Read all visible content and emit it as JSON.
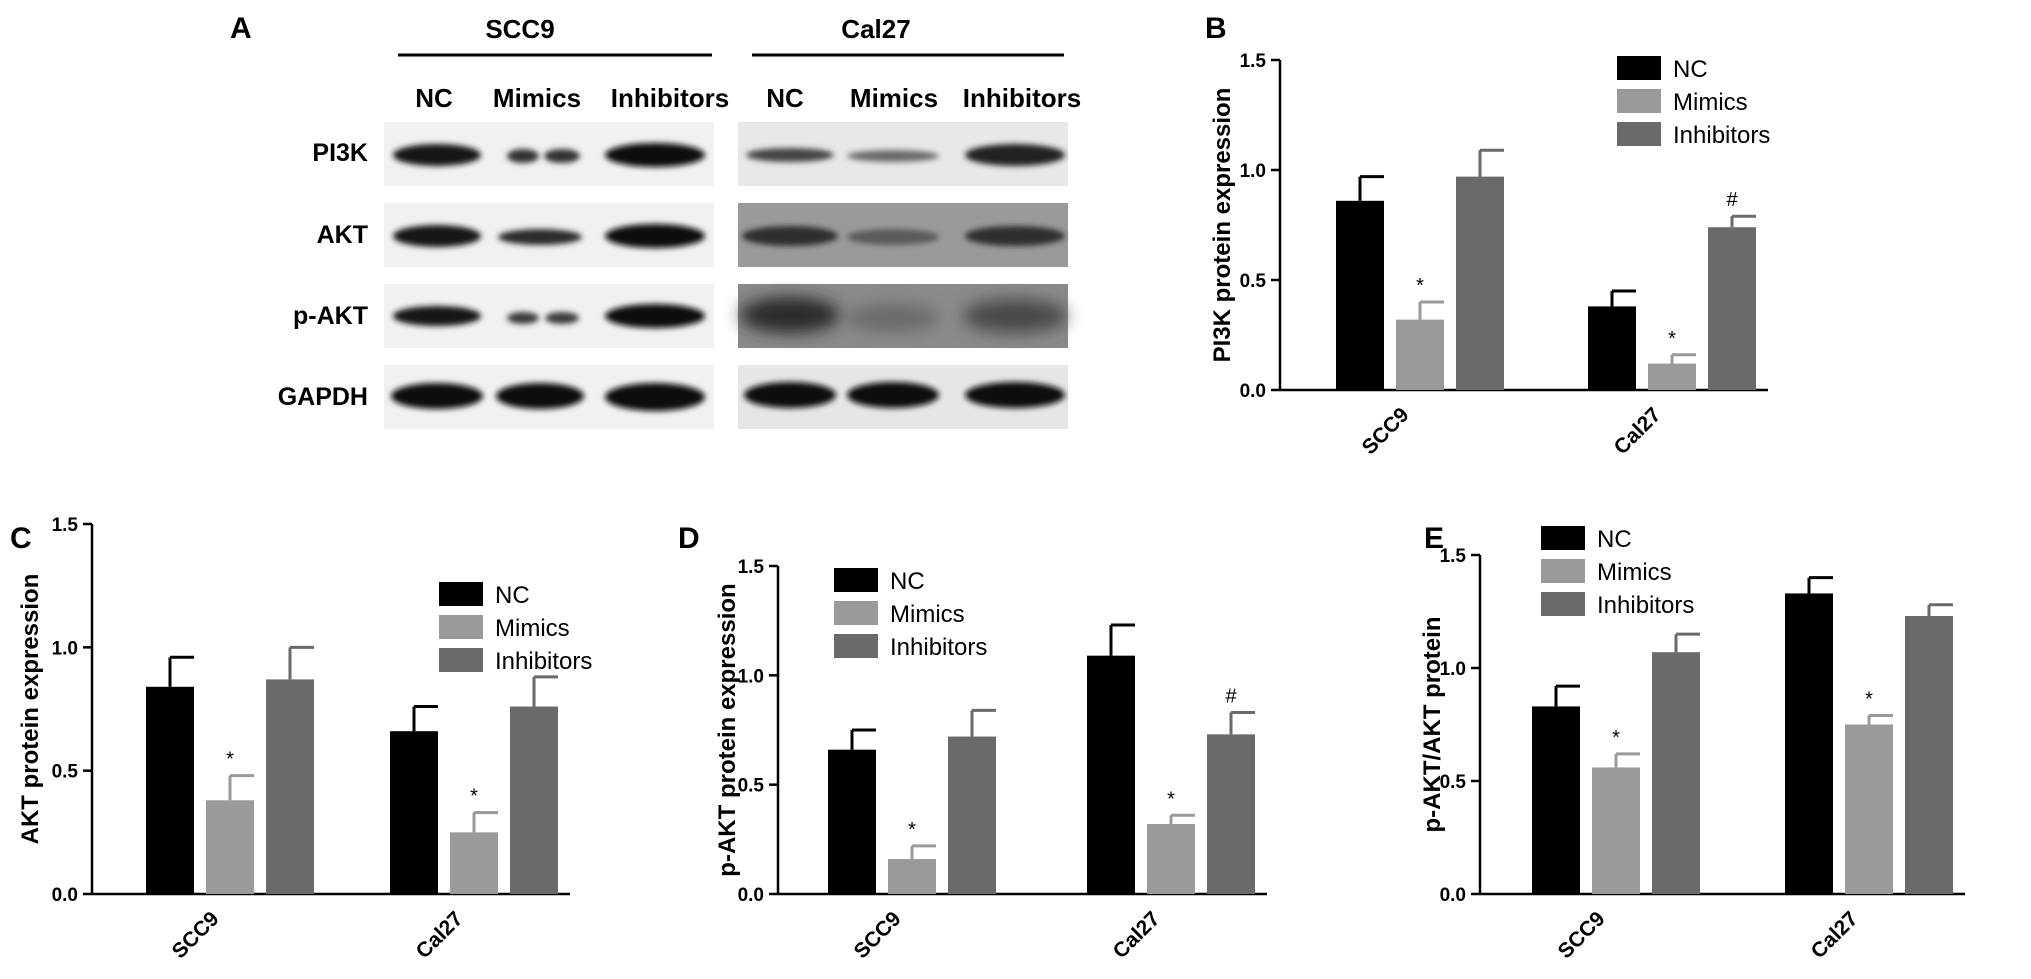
{
  "figure": {
    "panel_letters": [
      "A",
      "B",
      "C",
      "D",
      "E"
    ],
    "colors": {
      "NC": "#000000",
      "Mimics": "#9a9a9a",
      "Inhibitors": "#6a6a6a"
    }
  },
  "blot": {
    "cell_lines": [
      "SCC9",
      "Cal27"
    ],
    "lanes": [
      "NC",
      "Mimics",
      "Inhibitors"
    ],
    "rows": [
      "PI3K",
      "AKT",
      "p-AKT",
      "GAPDH"
    ]
  },
  "chart_data": [
    {
      "panel": "B",
      "type": "bar",
      "categories": [
        "SCC9",
        "Cal27"
      ],
      "series": [
        {
          "name": "NC",
          "values": [
            0.86,
            0.38
          ],
          "errors": [
            0.11,
            0.07
          ]
        },
        {
          "name": "Mimics",
          "values": [
            0.32,
            0.12
          ],
          "errors": [
            0.08,
            0.04
          ]
        },
        {
          "name": "Inhibitors",
          "values": [
            0.97,
            0.74
          ],
          "errors": [
            0.12,
            0.05
          ]
        }
      ],
      "annotations": [
        [
          "",
          ""
        ],
        [
          "*",
          "*"
        ],
        [
          "",
          "#"
        ]
      ],
      "ylabel": "PI3K protein expression",
      "ylim": [
        0,
        1.5
      ],
      "yticks": [
        "0.0",
        "0.5",
        "1.0",
        "1.5"
      ],
      "legend": "top-right"
    },
    {
      "panel": "C",
      "type": "bar",
      "categories": [
        "SCC9",
        "Cal27"
      ],
      "series": [
        {
          "name": "NC",
          "values": [
            0.84,
            0.66
          ],
          "errors": [
            0.12,
            0.1
          ]
        },
        {
          "name": "Mimics",
          "values": [
            0.38,
            0.25
          ],
          "errors": [
            0.1,
            0.08
          ]
        },
        {
          "name": "Inhibitors",
          "values": [
            0.87,
            0.76
          ],
          "errors": [
            0.13,
            0.12
          ]
        }
      ],
      "annotations": [
        [
          "",
          ""
        ],
        [
          "*",
          "*"
        ],
        [
          "",
          ""
        ]
      ],
      "ylabel": "AKT protein expression",
      "ylim": [
        0,
        1.5
      ],
      "yticks": [
        "0.0",
        "0.5",
        "1.0",
        "1.5"
      ],
      "legend": "top-right"
    },
    {
      "panel": "D",
      "type": "bar",
      "categories": [
        "SCC9",
        "Cal27"
      ],
      "series": [
        {
          "name": "NC",
          "values": [
            0.66,
            1.09
          ],
          "errors": [
            0.09,
            0.14
          ]
        },
        {
          "name": "Mimics",
          "values": [
            0.16,
            0.32
          ],
          "errors": [
            0.06,
            0.04
          ]
        },
        {
          "name": "Inhibitors",
          "values": [
            0.72,
            0.73
          ],
          "errors": [
            0.12,
            0.1
          ]
        }
      ],
      "annotations": [
        [
          "",
          ""
        ],
        [
          "*",
          "*"
        ],
        [
          "",
          "#"
        ]
      ],
      "ylabel": "p-AKT protein expression",
      "ylim": [
        0,
        1.5
      ],
      "yticks": [
        "0.0",
        "0.5",
        "1.0",
        "1.5"
      ],
      "legend": "top-left"
    },
    {
      "panel": "E",
      "type": "bar",
      "categories": [
        "SCC9",
        "Cal27"
      ],
      "series": [
        {
          "name": "NC",
          "values": [
            0.83,
            1.33
          ],
          "errors": [
            0.09,
            0.07
          ]
        },
        {
          "name": "Mimics",
          "values": [
            0.56,
            0.75
          ],
          "errors": [
            0.06,
            0.04
          ]
        },
        {
          "name": "Inhibitors",
          "values": [
            1.07,
            1.23
          ],
          "errors": [
            0.08,
            0.05
          ]
        }
      ],
      "annotations": [
        [
          "",
          ""
        ],
        [
          "*",
          "*"
        ],
        [
          "",
          ""
        ]
      ],
      "ylabel": "p-AKT/AKT protein",
      "ylim": [
        0,
        1.5
      ],
      "yticks": [
        "0.0",
        "0.5",
        "1.0",
        "1.5"
      ],
      "legend": "top-left"
    }
  ]
}
